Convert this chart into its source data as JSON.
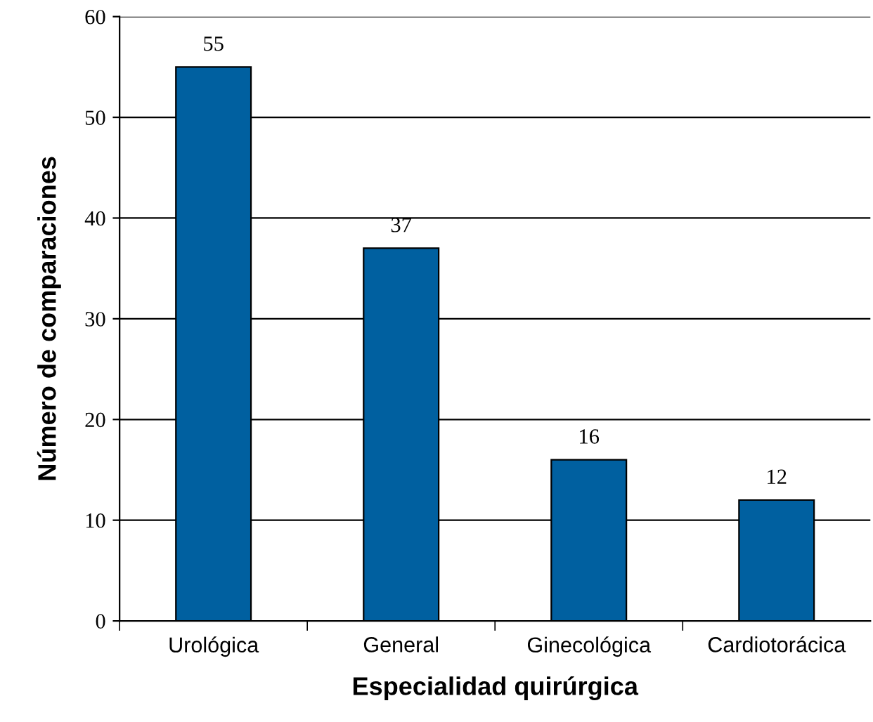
{
  "chart_data": {
    "type": "bar",
    "xlabel": "Especialidad quirúrgica",
    "ylabel": "Número de comparaciones",
    "categories": [
      "Urológica",
      "General",
      "Ginecológica",
      "Cardiotorácica"
    ],
    "values": [
      55,
      37,
      16,
      12
    ],
    "color": "#0060a0",
    "ylim": [
      0,
      60
    ],
    "yticks": [
      0,
      10,
      20,
      30,
      40,
      50,
      60
    ],
    "grid": "y",
    "data_labels": true
  }
}
